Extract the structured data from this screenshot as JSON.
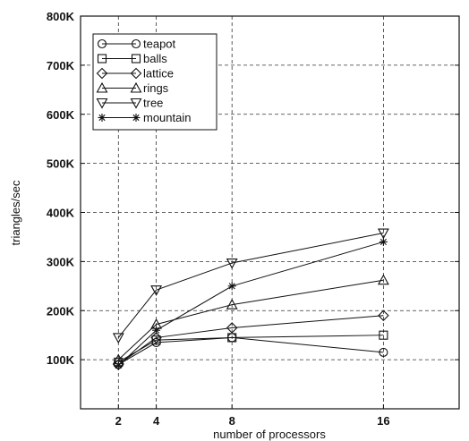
{
  "chart_data": {
    "type": "line",
    "xlabel": "number of processors",
    "ylabel": "triangles/sec",
    "x": [
      2,
      4,
      8,
      16
    ],
    "xticks": [
      2,
      4,
      8,
      16
    ],
    "xlim": [
      0,
      20
    ],
    "ylim": [
      0,
      800000
    ],
    "yticks": [
      100000,
      200000,
      300000,
      400000,
      500000,
      600000,
      700000,
      800000
    ],
    "ytick_labels": [
      "100K",
      "200K",
      "300K",
      "400K",
      "500K",
      "600K",
      "700K",
      "800K"
    ],
    "grid": true,
    "legend_position": "top-left",
    "series": [
      {
        "name": "teapot",
        "marker": "circle",
        "values": [
          90000,
          135000,
          145000,
          115000
        ]
      },
      {
        "name": "balls",
        "marker": "square",
        "values": [
          95000,
          140000,
          145000,
          150000
        ]
      },
      {
        "name": "lattice",
        "marker": "diamond",
        "values": [
          90000,
          145000,
          165000,
          190000
        ]
      },
      {
        "name": "rings",
        "marker": "triangle-up",
        "values": [
          100000,
          172000,
          212000,
          262000
        ]
      },
      {
        "name": "tree",
        "marker": "triangle-down",
        "values": [
          145000,
          242000,
          297000,
          358000
        ]
      },
      {
        "name": "mountain",
        "marker": "star",
        "values": [
          88000,
          160000,
          250000,
          340000
        ]
      }
    ]
  }
}
